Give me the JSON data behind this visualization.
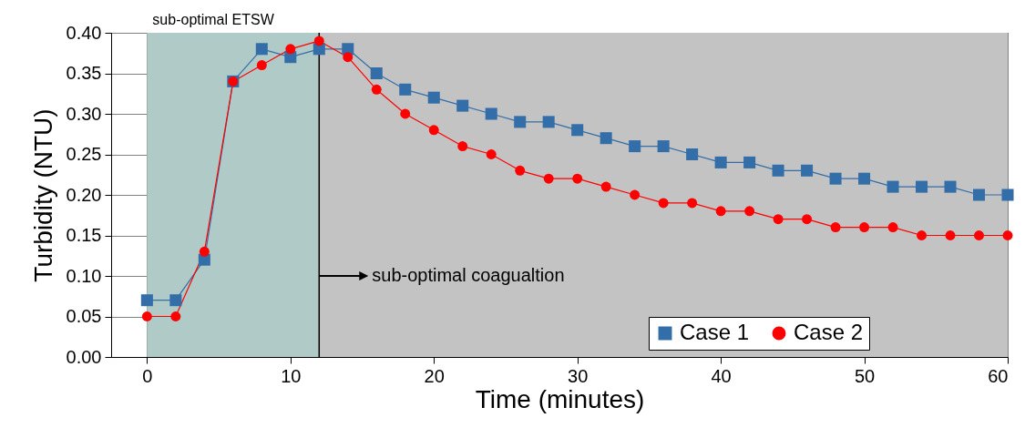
{
  "chart_data": {
    "type": "line",
    "xlabel": "Time (minutes)",
    "ylabel": "Turbidity (NTU)",
    "x": [
      0,
      2,
      4,
      6,
      8,
      10,
      12,
      14,
      16,
      18,
      20,
      22,
      24,
      26,
      28,
      30,
      32,
      34,
      36,
      38,
      40,
      42,
      44,
      46,
      48,
      50,
      52,
      54,
      56,
      58,
      60
    ],
    "series": [
      {
        "name": "Case 1",
        "color": "#336ea8",
        "marker": "square",
        "values": [
          0.07,
          0.07,
          0.12,
          0.34,
          0.38,
          0.37,
          0.38,
          0.38,
          0.35,
          0.33,
          0.32,
          0.31,
          0.3,
          0.29,
          0.29,
          0.28,
          0.27,
          0.26,
          0.26,
          0.25,
          0.24,
          0.24,
          0.23,
          0.23,
          0.22,
          0.22,
          0.21,
          0.21,
          0.21,
          0.2,
          0.2
        ]
      },
      {
        "name": "Case 2",
        "color": "#ff0000",
        "marker": "circle",
        "values": [
          0.05,
          0.05,
          0.13,
          0.34,
          0.36,
          0.38,
          0.39,
          0.37,
          0.33,
          0.3,
          0.28,
          0.26,
          0.25,
          0.23,
          0.22,
          0.22,
          0.21,
          0.2,
          0.19,
          0.19,
          0.18,
          0.18,
          0.17,
          0.17,
          0.16,
          0.16,
          0.16,
          0.15,
          0.15,
          0.15,
          0.15
        ]
      }
    ],
    "xlim": [
      -2.5,
      60
    ],
    "xticks": [
      0,
      10,
      20,
      30,
      40,
      50,
      60
    ],
    "ylim": [
      0,
      0.4
    ],
    "yticks": [
      {
        "value": 0,
        "label": "0.00"
      },
      {
        "value": 0.05,
        "label": "0.05"
      },
      {
        "value": 0.1,
        "label": "0.10"
      },
      {
        "value": 0.15,
        "label": "0.15"
      },
      {
        "value": 0.2,
        "label": "0.20"
      },
      {
        "value": 0.25,
        "label": "0.25"
      },
      {
        "value": 0.3,
        "label": "0.30"
      },
      {
        "value": 0.35,
        "label": "0.35"
      },
      {
        "value": 0.4,
        "label": "0.40"
      }
    ],
    "bands": [
      {
        "axis": "x",
        "from": 0,
        "to": 12,
        "label": "sub-optimal ETSW",
        "color": "#b0cbc7"
      },
      {
        "axis": "x",
        "from": 12,
        "to": 60,
        "color": "#c3c3c3"
      }
    ],
    "ref_lines": [
      {
        "axis": "x",
        "value": 12,
        "color": "#000000"
      }
    ],
    "annotations": [
      {
        "text": "sub-optimal coagualtion",
        "x": 12,
        "y": 0.1
      }
    ],
    "grid": true,
    "legend": "bottom right"
  }
}
